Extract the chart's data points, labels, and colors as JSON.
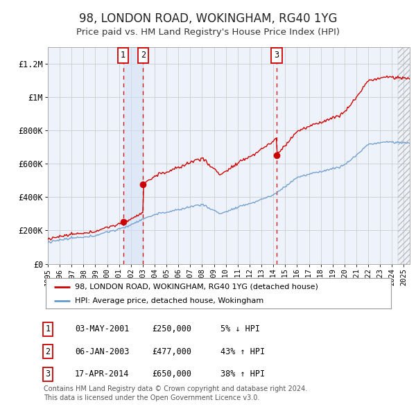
{
  "title": "98, LONDON ROAD, WOKINGHAM, RG40 1YG",
  "subtitle": "Price paid vs. HM Land Registry's House Price Index (HPI)",
  "ylim": [
    0,
    1300000
  ],
  "yticks": [
    0,
    200000,
    400000,
    600000,
    800000,
    1000000,
    1200000
  ],
  "ytick_labels": [
    "£0",
    "£200K",
    "£400K",
    "£600K",
    "£800K",
    "£1M",
    "£1.2M"
  ],
  "background_color": "#ffffff",
  "plot_bg_color": "#eef2fb",
  "grid_color": "#cccccc",
  "transaction_color": "#cc0000",
  "hpi_color": "#6699cc",
  "shade_color": "#d0e0f5",
  "transactions": [
    {
      "date_num": 2001.34,
      "price": 250000,
      "label": "1"
    },
    {
      "date_num": 2003.02,
      "price": 477000,
      "label": "2"
    },
    {
      "date_num": 2014.29,
      "price": 650000,
      "label": "3"
    }
  ],
  "legend_line1": "98, LONDON ROAD, WOKINGHAM, RG40 1YG (detached house)",
  "legend_line2": "HPI: Average price, detached house, Wokingham",
  "table_rows": [
    {
      "num": "1",
      "date": "03-MAY-2001",
      "price": "£250,000",
      "pct": "5% ↓ HPI"
    },
    {
      "num": "2",
      "date": "06-JAN-2003",
      "price": "£477,000",
      "pct": "43% ↑ HPI"
    },
    {
      "num": "3",
      "date": "17-APR-2014",
      "price": "£650,000",
      "pct": "38% ↑ HPI"
    }
  ],
  "footnote": "Contains HM Land Registry data © Crown copyright and database right 2024.\nThis data is licensed under the Open Government Licence v3.0.",
  "xmin": 1995.0,
  "xmax": 2025.5
}
